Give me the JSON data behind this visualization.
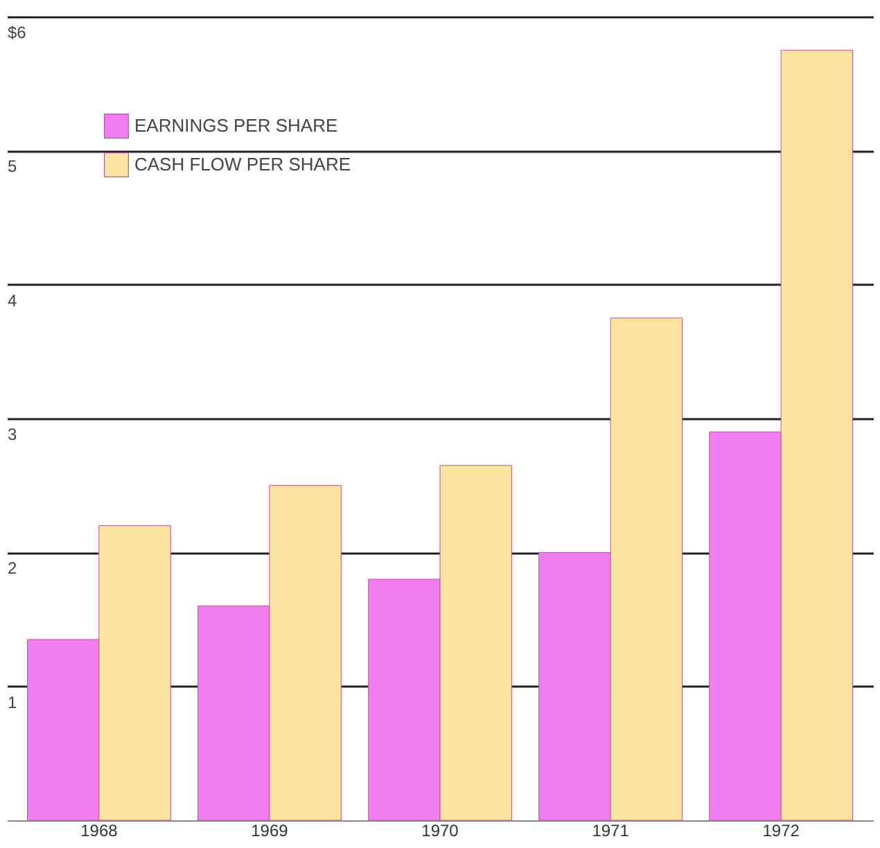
{
  "chart_data": {
    "type": "bar",
    "categories": [
      "1968",
      "1969",
      "1970",
      "1971",
      "1972"
    ],
    "series": [
      {
        "name": "EARNINGS PER SHARE",
        "color": "#f07ef0",
        "values": [
          1.35,
          1.6,
          1.8,
          2.0,
          2.9
        ]
      },
      {
        "name": "CASH FLOW PER SHARE",
        "color": "#fbe3a0",
        "values": [
          2.2,
          2.5,
          2.65,
          3.75,
          5.75
        ]
      }
    ],
    "ylim": [
      0,
      6
    ],
    "yticks": [
      1,
      2,
      3,
      4,
      5,
      {
        "value": 6,
        "label": "$6"
      }
    ],
    "grid": "y",
    "legend": "top left"
  }
}
